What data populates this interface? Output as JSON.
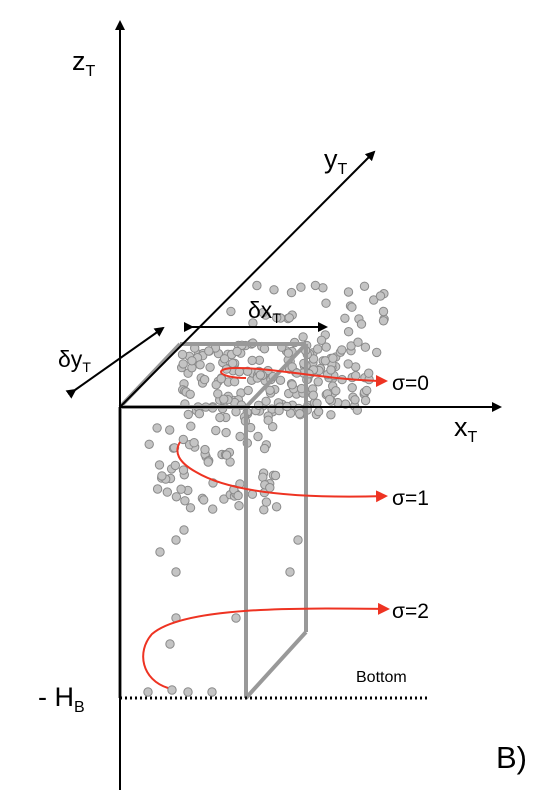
{
  "axes": {
    "z": {
      "base": "z",
      "sub": "T"
    },
    "y": {
      "base": "y",
      "sub": "T"
    },
    "x": {
      "base": "x",
      "sub": "T"
    }
  },
  "dimensions": {
    "dx": {
      "base": "δx",
      "sub": "T"
    },
    "dy": {
      "base": "δy",
      "sub": "T"
    }
  },
  "depth": {
    "prefix": "- ",
    "base": "H",
    "sub": "B"
  },
  "bottom_label": "Bottom",
  "sigma_labels": [
    "σ=0",
    "σ=1",
    "σ=2"
  ],
  "panel_label": "B)",
  "colors": {
    "axes": "#000000",
    "box": "#999999",
    "trajectory": "#ee3322",
    "particle_fill": "#c4c4c4",
    "particle_stroke": "#8a8a8a"
  }
}
